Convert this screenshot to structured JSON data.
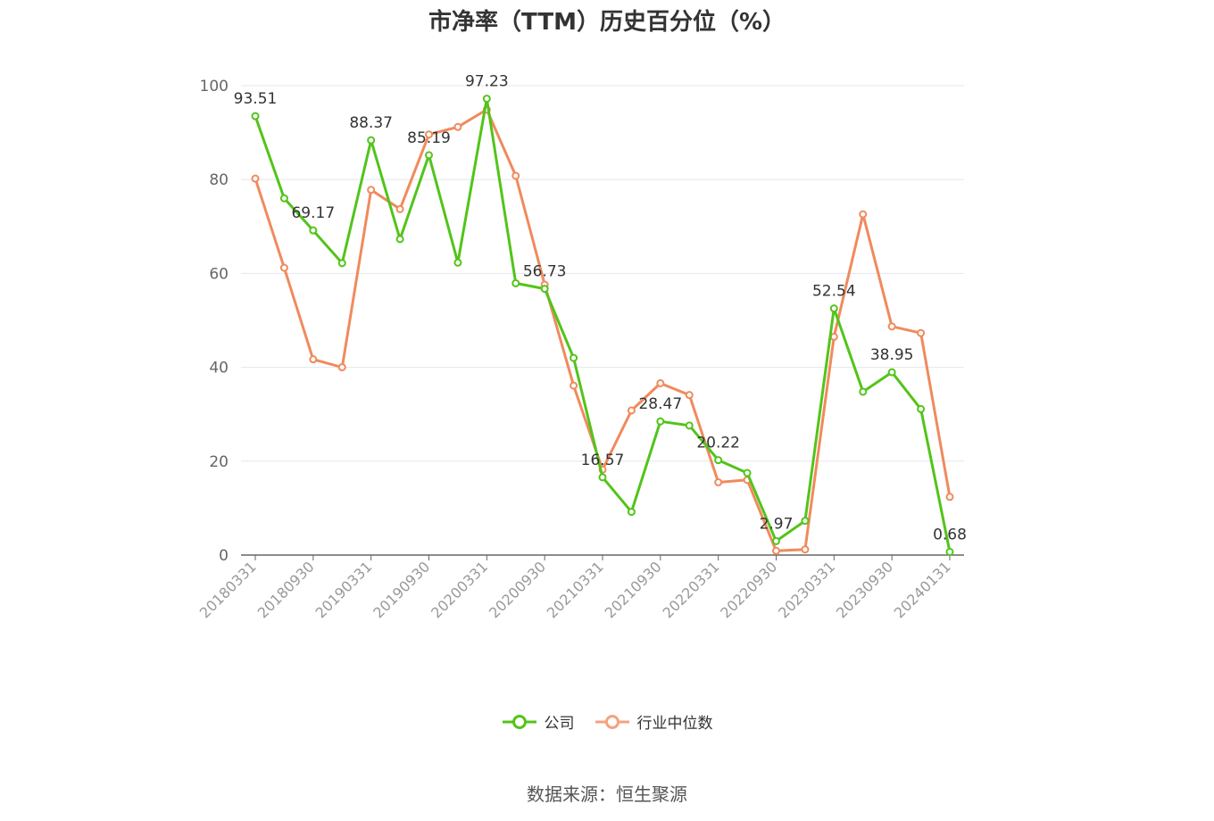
{
  "title": "市净率（TTM）历史百分位（%）",
  "source": "数据来源：恒生聚源",
  "colors": {
    "company": "#52c41a",
    "industry": "#f08a5d",
    "grid": "#e3e6ef",
    "axis": "#666666",
    "text": "#333333"
  },
  "legend": [
    {
      "label": "公司",
      "color": "#52c41a"
    },
    {
      "label": "行业中位数",
      "color": "#f4a27f"
    }
  ],
  "chart_data": {
    "type": "line",
    "title": "市净率（TTM）历史百分位（%）",
    "ylim": [
      0,
      100
    ],
    "yticks": [
      0,
      20,
      40,
      60,
      80,
      100
    ],
    "x_tick_labels": [
      "20180331",
      "20180930",
      "20190331",
      "20190930",
      "20200331",
      "20200930",
      "20210331",
      "20210930",
      "20220331",
      "20220930",
      "20230331",
      "20230930",
      "20240131"
    ],
    "x_tick_index": [
      0,
      2,
      4,
      6,
      8,
      10,
      12,
      14,
      16,
      18,
      20,
      22,
      24
    ],
    "grid": true,
    "legend_position": "bottom",
    "series": [
      {
        "name": "公司",
        "values": [
          93.51,
          76.0,
          69.17,
          62.2,
          88.37,
          67.3,
          85.19,
          62.3,
          97.23,
          57.9,
          56.73,
          42.0,
          16.57,
          9.2,
          28.47,
          27.6,
          20.22,
          17.5,
          2.97,
          7.3,
          52.54,
          34.8,
          38.95,
          31.1,
          0.68
        ],
        "labeled_points": [
          {
            "index": 0,
            "text": "93.51"
          },
          {
            "index": 2,
            "text": "69.17"
          },
          {
            "index": 4,
            "text": "88.37"
          },
          {
            "index": 6,
            "text": "85.19"
          },
          {
            "index": 8,
            "text": "97.23"
          },
          {
            "index": 10,
            "text": "56.73"
          },
          {
            "index": 12,
            "text": "16.57"
          },
          {
            "index": 14,
            "text": "28.47"
          },
          {
            "index": 16,
            "text": "20.22"
          },
          {
            "index": 18,
            "text": "2.97"
          },
          {
            "index": 20,
            "text": "52.54"
          },
          {
            "index": 22,
            "text": "38.95"
          },
          {
            "index": 24,
            "text": "0.68"
          }
        ]
      },
      {
        "name": "行业中位数",
        "values": [
          80.2,
          61.2,
          41.7,
          40.0,
          77.8,
          73.7,
          89.6,
          91.2,
          94.9,
          80.8,
          57.6,
          36.1,
          18.2,
          30.8,
          36.6,
          34.1,
          15.5,
          16.0,
          0.9,
          1.2,
          46.5,
          72.6,
          48.7,
          47.3,
          12.4
        ]
      }
    ]
  }
}
